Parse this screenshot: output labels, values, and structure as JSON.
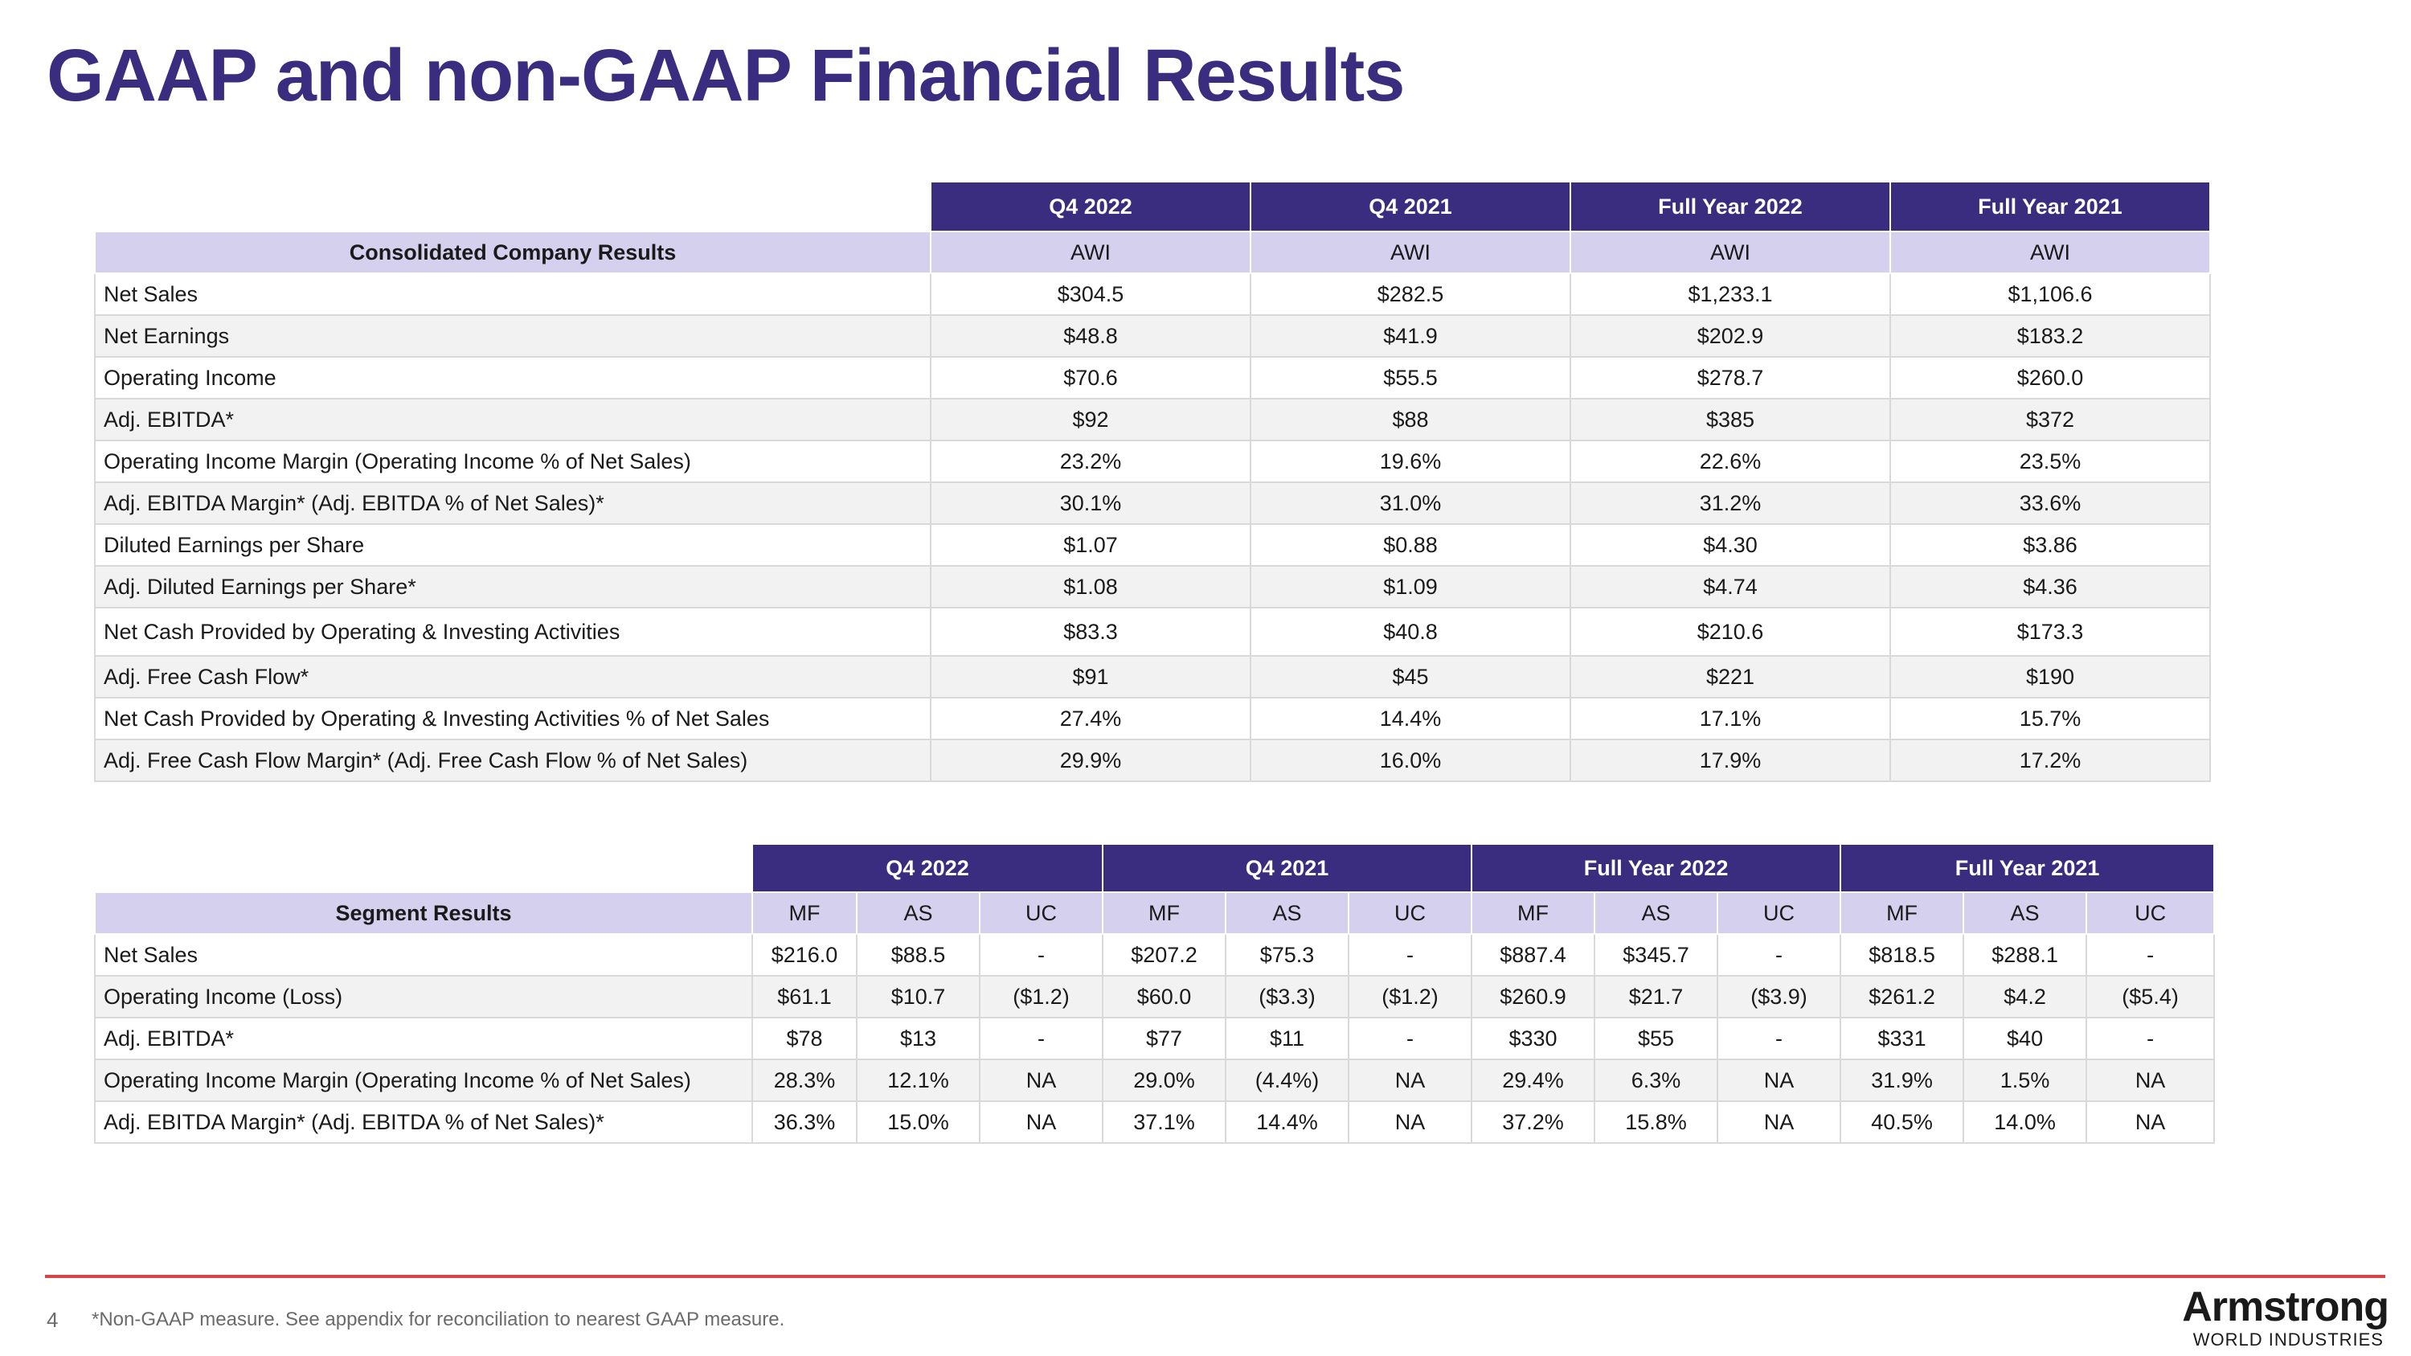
{
  "page_title": "GAAP and non-GAAP Financial Results",
  "consolidated": {
    "headers": [
      "Q4 2022",
      "Q4 2021",
      "Full Year 2022",
      "Full Year 2021"
    ],
    "subheader_label": "Consolidated Company Results",
    "subheaders": [
      "AWI",
      "AWI",
      "AWI",
      "AWI"
    ],
    "rows": [
      {
        "label": "Net Sales",
        "values": [
          "$304.5",
          "$282.5",
          "$1,233.1",
          "$1,106.6"
        ]
      },
      {
        "label": "Net Earnings",
        "values": [
          "$48.8",
          "$41.9",
          "$202.9",
          "$183.2"
        ]
      },
      {
        "label": "Operating Income",
        "values": [
          "$70.6",
          "$55.5",
          "$278.7",
          "$260.0"
        ]
      },
      {
        "label": "Adj. EBITDA*",
        "values": [
          "$92",
          "$88",
          "$385",
          "$372"
        ]
      },
      {
        "label": "Operating Income Margin (Operating Income % of Net Sales)",
        "values": [
          "23.2%",
          "19.6%",
          "22.6%",
          "23.5%"
        ]
      },
      {
        "label": "Adj. EBITDA Margin* (Adj. EBITDA % of Net Sales)*",
        "values": [
          "30.1%",
          "31.0%",
          "31.2%",
          "33.6%"
        ]
      },
      {
        "label": "Diluted Earnings per Share",
        "values": [
          "$1.07",
          "$0.88",
          "$4.30",
          "$3.86"
        ]
      },
      {
        "label": "Adj. Diluted Earnings per Share*",
        "values": [
          "$1.08",
          "$1.09",
          "$4.74",
          "$4.36"
        ]
      },
      {
        "label": "Net Cash Provided by Operating & Investing Activities",
        "values": [
          "$83.3",
          "$40.8",
          "$210.6",
          "$173.3"
        ]
      },
      {
        "label": "Adj. Free Cash Flow*",
        "values": [
          "$91",
          "$45",
          "$221",
          "$190"
        ]
      },
      {
        "label": "Net Cash Provided by Operating & Investing Activities % of Net Sales",
        "values": [
          "27.4%",
          "14.4%",
          "17.1%",
          "15.7%"
        ]
      },
      {
        "label": "Adj. Free Cash Flow Margin* (Adj. Free Cash Flow % of Net Sales)",
        "values": [
          "29.9%",
          "16.0%",
          "17.9%",
          "17.2%"
        ]
      }
    ]
  },
  "segment": {
    "headers": [
      "Q4 2022",
      "Q4 2021",
      "Full Year 2022",
      "Full Year 2021"
    ],
    "subheader_label": "Segment Results",
    "subheaders": [
      "MF",
      "AS",
      "UC",
      "MF",
      "AS",
      "UC",
      "MF",
      "AS",
      "UC",
      "MF",
      "AS",
      "UC"
    ],
    "rows": [
      {
        "label": "Net Sales",
        "values": [
          "$216.0",
          "$88.5",
          "-",
          "$207.2",
          "$75.3",
          "-",
          "$887.4",
          "$345.7",
          "-",
          "$818.5",
          "$288.1",
          "-"
        ]
      },
      {
        "label": "Operating Income (Loss)",
        "values": [
          "$61.1",
          "$10.7",
          "($1.2)",
          "$60.0",
          "($3.3)",
          "($1.2)",
          "$260.9",
          "$21.7",
          "($3.9)",
          "$261.2",
          "$4.2",
          "($5.4)"
        ]
      },
      {
        "label": "Adj. EBITDA*",
        "values": [
          "$78",
          "$13",
          "-",
          "$77",
          "$11",
          "-",
          "$330",
          "$55",
          "-",
          "$331",
          "$40",
          "-"
        ]
      },
      {
        "label": "Operating Income Margin (Operating Income % of Net Sales)",
        "values": [
          "28.3%",
          "12.1%",
          "NA",
          "29.0%",
          "(4.4%)",
          "NA",
          "29.4%",
          "6.3%",
          "NA",
          "31.9%",
          "1.5%",
          "NA"
        ]
      },
      {
        "label": "Adj. EBITDA Margin* (Adj. EBITDA % of Net Sales)*",
        "values": [
          "36.3%",
          "15.0%",
          "NA",
          "37.1%",
          "14.4%",
          "NA",
          "37.2%",
          "15.8%",
          "NA",
          "40.5%",
          "14.0%",
          "NA"
        ]
      }
    ]
  },
  "footer": {
    "page_number": "4",
    "footnote": "*Non-GAAP measure. See appendix for reconciliation to nearest GAAP measure.",
    "logo_word": "Armstrong",
    "logo_sub": "WORLD INDUSTRIES"
  },
  "colors": {
    "header_bg": "#3a2c7f",
    "subheader_bg": "#d4d0ee",
    "divider": "#d6464a"
  }
}
